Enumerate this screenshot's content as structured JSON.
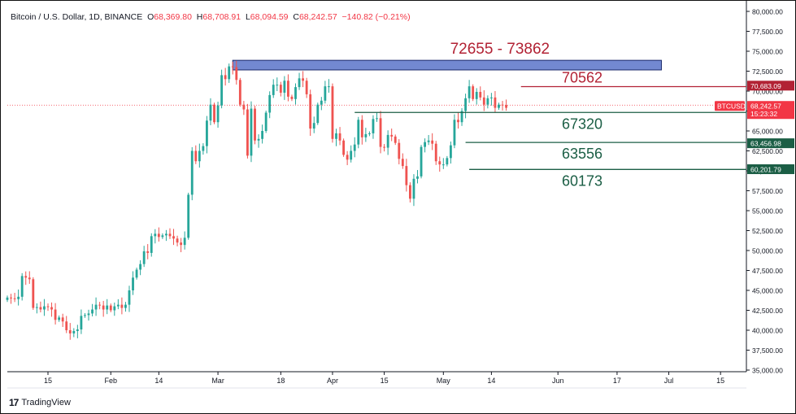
{
  "header": {
    "symbol": "Bitcoin / U.S. Dollar, 1D, BINANCE",
    "open_label": "O",
    "open": "68,369.80",
    "high_label": "H",
    "high": "68,708.91",
    "low_label": "L",
    "low": "68,094.59",
    "close_label": "C",
    "close": "68,242.57",
    "change": "−140.82 (−0.21%)"
  },
  "brand": {
    "logo": "17",
    "name": "TradingView"
  },
  "colors": {
    "up": "#26a69a",
    "down": "#ef5350",
    "zone": "#5b74c9",
    "resistance": "#b22234",
    "support": "#1b5e45",
    "price": "#f23645"
  },
  "chart_data": {
    "type": "candlestick",
    "symbol": "BTCUSD",
    "interval": "1D",
    "ylim": [
      35000,
      80000
    ],
    "y_ticks": [
      "35,000.00",
      "37,500.00",
      "40,000.00",
      "42,500.00",
      "45,000.00",
      "47,500.00",
      "50,000.00",
      "52,500.00",
      "55,000.00",
      "57,500.00",
      "60,000.00",
      "62,500.00",
      "65,000.00",
      "67,500.00",
      "70,000.00",
      "72,500.00",
      "75,000.00",
      "77,500.00",
      "80,000.00"
    ],
    "x_start": "2024-01-04",
    "x_end": "2024-07-22",
    "x_ticks": [
      {
        "date": "2024-01-15",
        "label": "15"
      },
      {
        "date": "2024-02-01",
        "label": "Feb"
      },
      {
        "date": "2024-02-14",
        "label": "14"
      },
      {
        "date": "2024-03-01",
        "label": "Mar"
      },
      {
        "date": "2024-03-18",
        "label": "18"
      },
      {
        "date": "2024-04-01",
        "label": "Apr"
      },
      {
        "date": "2024-04-15",
        "label": "15"
      },
      {
        "date": "2024-05-01",
        "label": "May"
      },
      {
        "date": "2024-05-14",
        "label": "14"
      },
      {
        "date": "2024-06-01",
        "label": "Jun"
      },
      {
        "date": "2024-06-17",
        "label": "17"
      },
      {
        "date": "2024-07-01",
        "label": "Jul"
      },
      {
        "date": "2024-07-15",
        "label": "15"
      }
    ],
    "first_date": "2024-01-04",
    "closes": [
      44100,
      44000,
      43900,
      44200,
      46800,
      46600,
      46400,
      42800,
      42900,
      42600,
      43000,
      42900,
      42600,
      41300,
      41600,
      41100,
      40000,
      39600,
      39900,
      40100,
      41800,
      41900,
      42100,
      42600,
      43200,
      43100,
      42600,
      43100,
      42500,
      43000,
      43200,
      42800,
      43200,
      45000,
      46600,
      47600,
      48300,
      49900,
      49700,
      51800,
      52100,
      51700,
      51900,
      52100,
      51800,
      51500,
      51000,
      50700,
      51600,
      57000,
      62500,
      61200,
      62500,
      63100,
      66300,
      68300,
      66100,
      68200,
      72000,
      71500,
      73100,
      73000,
      71400,
      68300,
      67700,
      61900,
      67800,
      63800,
      64000,
      65000,
      67300,
      69500,
      70800,
      70800,
      69800,
      71300,
      69300,
      69000,
      70500,
      71600,
      71300,
      69600,
      65300,
      66000,
      68300,
      68800,
      70600,
      70600,
      64000,
      64700,
      63800,
      62000,
      61400,
      62500,
      63300,
      66400,
      64200,
      64600,
      64700,
      66500,
      66600,
      63000,
      62900,
      64500,
      64300,
      63500,
      61500,
      60600,
      58200,
      56500,
      59000,
      59300,
      63000,
      63600,
      63800,
      63400,
      61200,
      60800,
      60800,
      61600,
      63200,
      66400,
      66100,
      67500,
      69100,
      70600,
      69000,
      69900,
      69200,
      68300,
      69100,
      69200,
      67900,
      68300,
      68250,
      67900
    ],
    "last_price": "68,242.57",
    "zone": {
      "label": "72655 - 73862",
      "low": 72655,
      "high": 73862,
      "start": "2024-03-05",
      "end": "2024-06-29"
    },
    "levels": [
      {
        "label": "70562",
        "value": 70562,
        "tag": "70,683.09",
        "tag_value": 70683.09,
        "start": "2024-05-22",
        "kind": "resistance"
      },
      {
        "label": "67320",
        "value": 67320,
        "tag": "67,277.75",
        "tag_value": 67277.75,
        "start": "2024-04-07",
        "kind": "support"
      },
      {
        "label": "63556",
        "value": 63556,
        "tag": "63,456.98",
        "tag_value": 63456.98,
        "start": "2024-05-07",
        "kind": "support"
      },
      {
        "label": "60173",
        "value": 60173,
        "tag": "60,201.79",
        "tag_value": 60201.79,
        "start": "2024-05-08",
        "kind": "support"
      }
    ],
    "price_tag": {
      "symbol": "BTCUSD",
      "price": "68,242.57",
      "countdown": "15:23:32"
    }
  }
}
